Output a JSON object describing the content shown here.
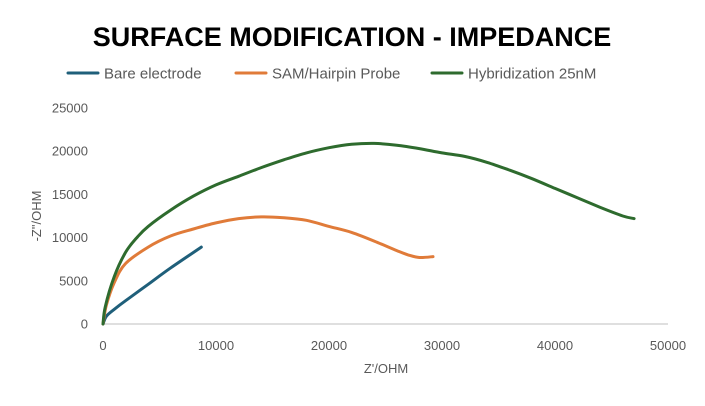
{
  "chart_data": {
    "type": "line",
    "title": "SURFACE MODIFICATION - IMPEDANCE",
    "xlabel": "Z'/OHM",
    "ylabel": "-Z\"/OHM",
    "xlim": [
      0,
      50000
    ],
    "ylim": [
      0,
      25000
    ],
    "xticks": [
      0,
      10000,
      20000,
      30000,
      40000,
      50000
    ],
    "yticks": [
      0,
      5000,
      10000,
      15000,
      20000,
      25000
    ],
    "grid": false,
    "legend_position": "top",
    "series": [
      {
        "name": "Bare electrode",
        "color": "#1f5f7a",
        "x": [
          0,
          300,
          1000,
          2000,
          4000,
          6000,
          8700
        ],
        "y": [
          0,
          900,
          1700,
          2700,
          4600,
          6500,
          8900
        ]
      },
      {
        "name": "SAM/Hairpin Probe",
        "color": "#e07b39",
        "x": [
          0,
          300,
          1000,
          2000,
          4000,
          6000,
          8000,
          10000,
          12000,
          14000,
          16000,
          18000,
          20000,
          22000,
          24000,
          26000,
          27000,
          28000,
          29200
        ],
        "y": [
          0,
          2200,
          4800,
          7000,
          8900,
          10200,
          11000,
          11700,
          12200,
          12400,
          12300,
          12000,
          11300,
          10600,
          9600,
          8500,
          8000,
          7700,
          7800
        ]
      },
      {
        "name": "Hybridization 25nM",
        "color": "#2e6b2e",
        "x": [
          0,
          200,
          1000,
          2000,
          3000,
          4000,
          6000,
          8000,
          10000,
          12000,
          14000,
          16000,
          18000,
          20000,
          22000,
          24000,
          26000,
          28000,
          30000,
          32000,
          34000,
          36000,
          38000,
          40000,
          42000,
          44000,
          46000,
          47000
        ],
        "y": [
          0,
          2000,
          5500,
          8300,
          10000,
          11300,
          13200,
          14800,
          16100,
          17100,
          18100,
          19000,
          19800,
          20400,
          20800,
          20900,
          20700,
          20300,
          19800,
          19400,
          18700,
          17800,
          16800,
          15700,
          14600,
          13500,
          12500,
          12200
        ]
      }
    ]
  }
}
